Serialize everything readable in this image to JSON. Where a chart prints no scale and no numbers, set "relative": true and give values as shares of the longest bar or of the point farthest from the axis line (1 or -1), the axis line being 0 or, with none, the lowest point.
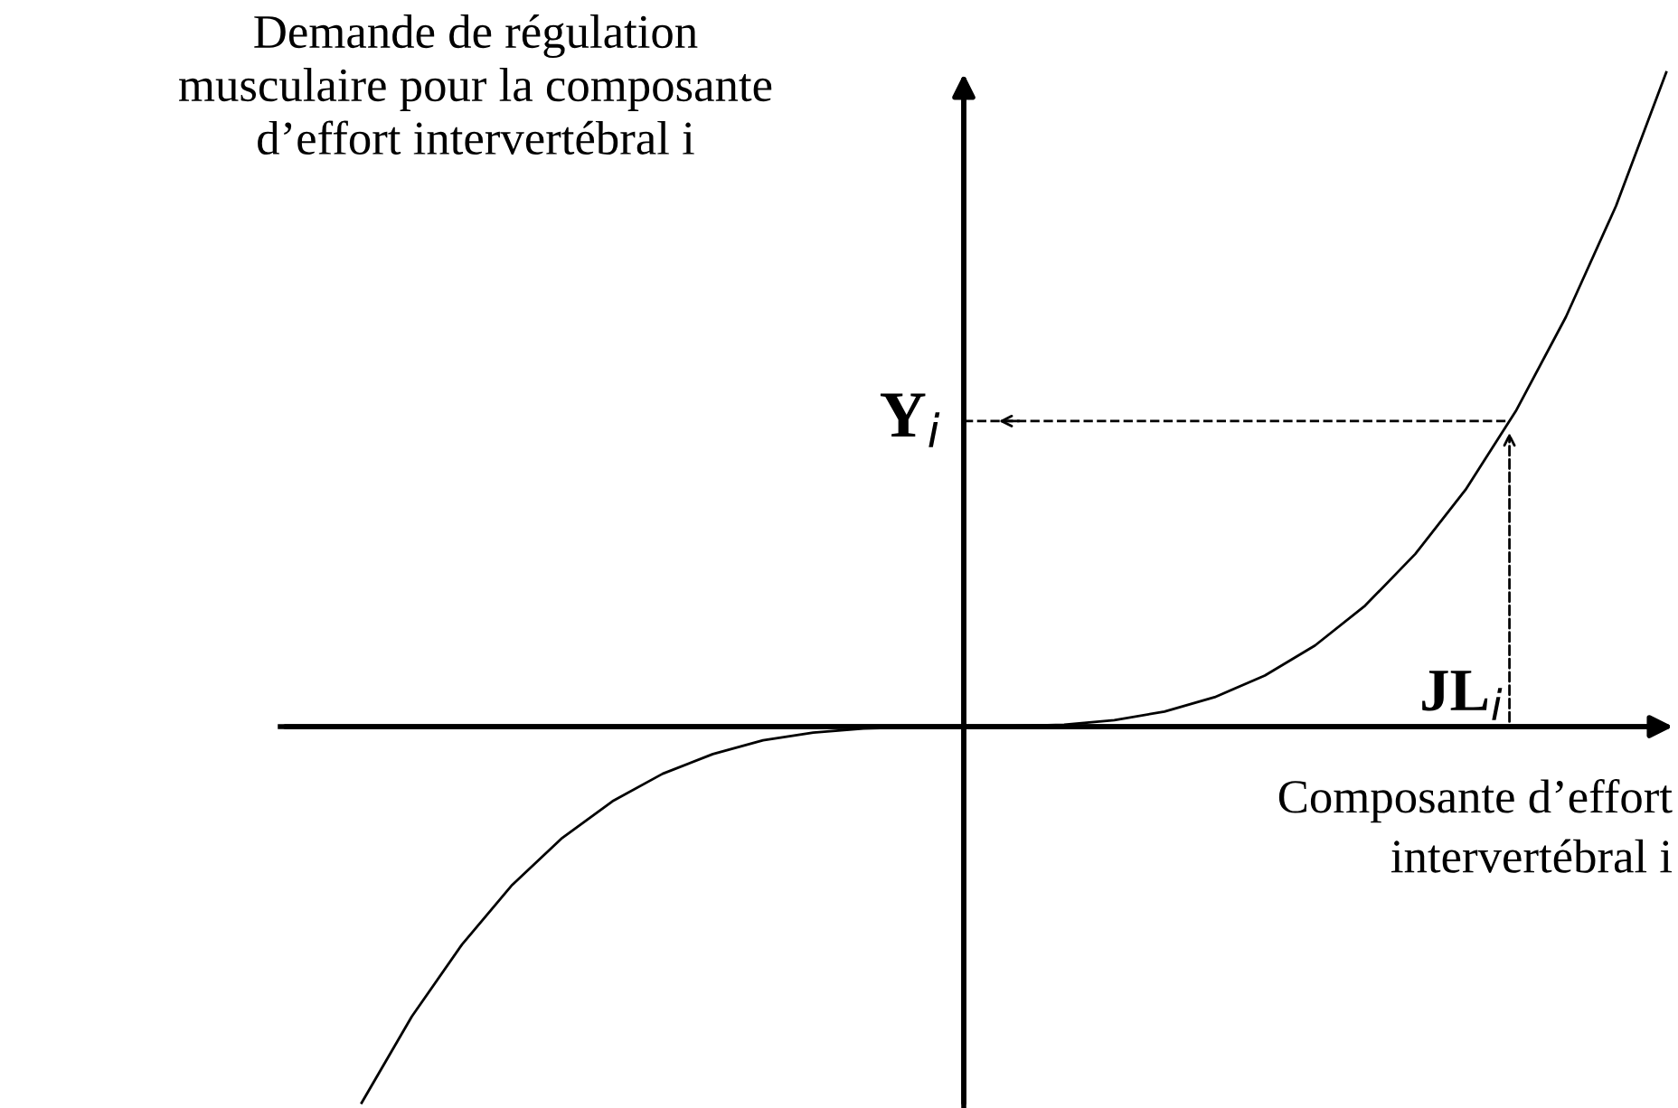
{
  "chart_data": {
    "type": "line",
    "relative": true,
    "xlabel": "Composante d’effort\nintervertébral i",
    "ylabel": "Demande de régulation\nmusculaire pour la composante\nd’effort intervertébral i",
    "categories": [
      null,
      null,
      null,
      null,
      null,
      null,
      null,
      null,
      null,
      null,
      null,
      null,
      null,
      null,
      null,
      null,
      null,
      null,
      null,
      null,
      null,
      null,
      null,
      null,
      null,
      null,
      null
    ],
    "series": [
      {
        "color": "#000000",
        "values": [
          -0.575,
          -0.443,
          -0.333,
          -0.242,
          -0.17,
          -0.114,
          -0.072,
          -0.042,
          -0.021,
          -0.009,
          -0.003,
          -0.001,
          0,
          0.001,
          0.003,
          0.01,
          0.023,
          0.045,
          0.078,
          0.124,
          0.185,
          0.264,
          0.362,
          0.482,
          0.626,
          0.796,
          1.0
        ]
      }
    ],
    "ref_lines": [
      {
        "axis": "y",
        "value": 0.467,
        "label": "Y$_{i}$",
        "line_style": "dashed",
        "color": "#000000"
      }
    ],
    "annotations": [
      "JL$_{i}$"
    ],
    "marker": "none",
    "line_style": "solid",
    "grid": false,
    "legend": false
  }
}
